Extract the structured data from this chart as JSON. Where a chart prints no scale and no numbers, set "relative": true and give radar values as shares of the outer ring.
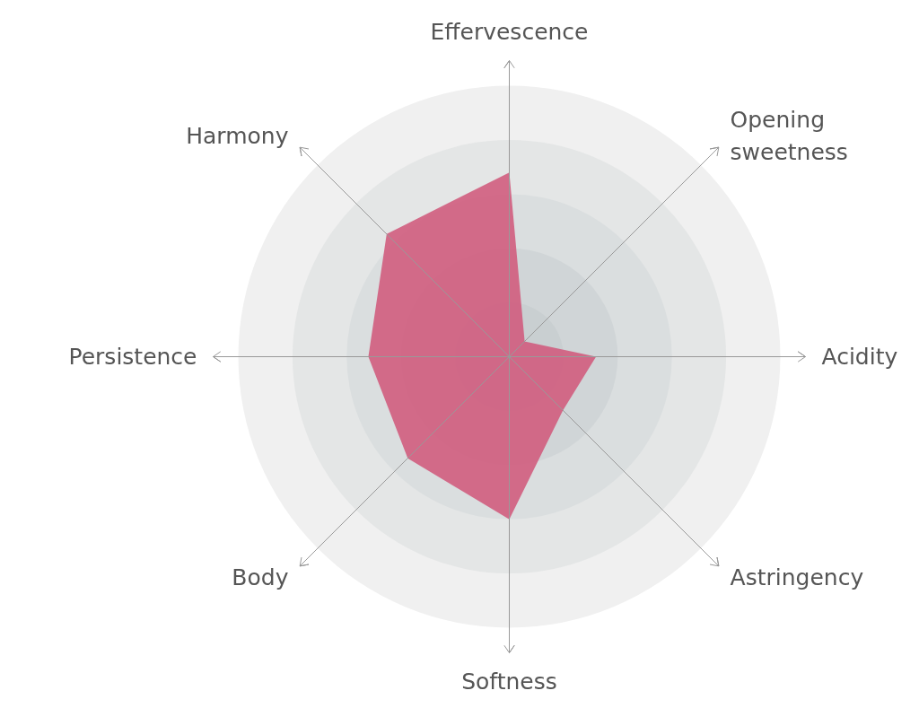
{
  "chart_data": {
    "type": "radar",
    "relative": true,
    "grid": true,
    "categories": [
      "Effervescence",
      "Opening sweetness",
      "Acidity",
      "Astringency",
      "Softness",
      "Body",
      "Persistence",
      "Harmony"
    ],
    "series": [
      {
        "color": "#d05a7c",
        "values": [
          0.68,
          0.08,
          0.32,
          0.28,
          0.6,
          0.53,
          0.52,
          0.64
        ]
      }
    ]
  }
}
